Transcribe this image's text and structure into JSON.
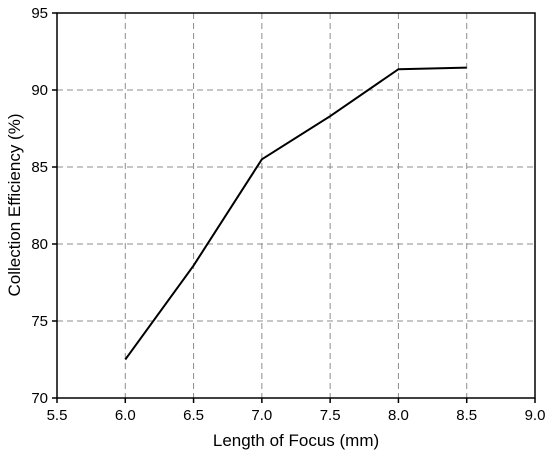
{
  "chart_data": {
    "type": "line",
    "x_label": "Length of Focus (mm)",
    "y_label": "Collection Efficiency (%)",
    "x": [
      6.0,
      6.5,
      7.0,
      7.5,
      8.0,
      8.5
    ],
    "series": [
      {
        "color": "#000000",
        "values": [
          72.5,
          78.6,
          85.5,
          88.3,
          91.35,
          91.45
        ]
      }
    ],
    "xlim": [
      5.5,
      9.0
    ],
    "xticks": [
      {
        "value": 5.5,
        "label": "5.5"
      },
      {
        "value": 6.0,
        "label": "6.0"
      },
      {
        "value": 6.5,
        "label": "6.5"
      },
      {
        "value": 7.0,
        "label": "7.0"
      },
      {
        "value": 7.5,
        "label": "7.5"
      },
      {
        "value": 8.0,
        "label": "8.0"
      },
      {
        "value": 8.5,
        "label": "8.5"
      },
      {
        "value": 9.0,
        "label": "9.0"
      }
    ],
    "ylim": [
      70,
      95
    ],
    "yticks": [
      70,
      75,
      80,
      85,
      90,
      95
    ],
    "grid": true
  }
}
